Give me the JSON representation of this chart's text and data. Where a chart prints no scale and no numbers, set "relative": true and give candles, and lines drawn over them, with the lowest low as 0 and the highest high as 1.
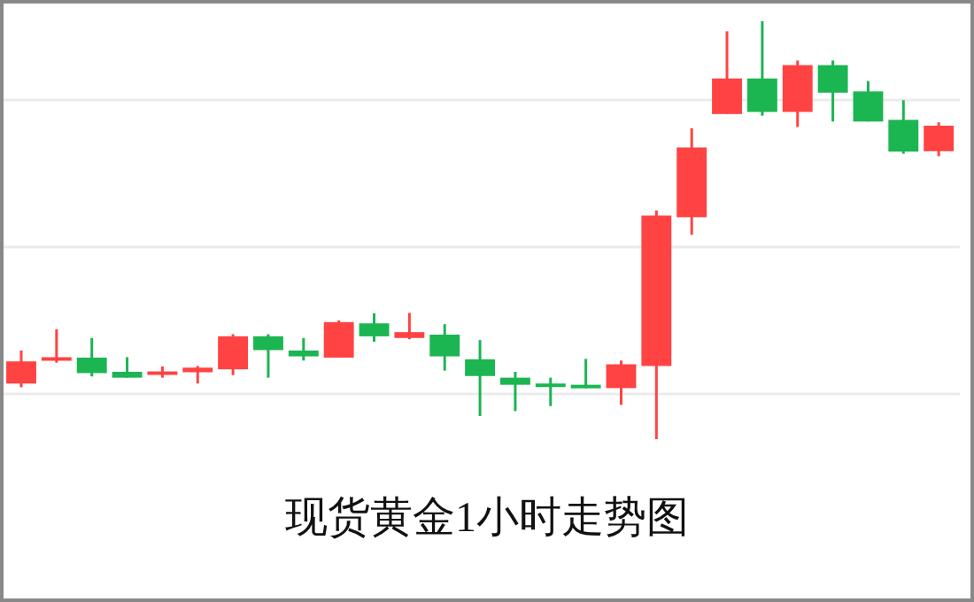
{
  "chart_data": {
    "type": "candlestick",
    "title": "现货黄金1小时走势图",
    "relative": true,
    "grid": "y",
    "categories": [
      null,
      null,
      null,
      null,
      null,
      null,
      null,
      null,
      null,
      null,
      null,
      null,
      null,
      null,
      null,
      null,
      null,
      null,
      null,
      null,
      null,
      null,
      null,
      null,
      null,
      null,
      null
    ],
    "ohlc": [
      [
        0.133,
        0.212,
        0.124,
        0.186
      ],
      [
        0.188,
        0.263,
        0.183,
        0.196
      ],
      [
        0.195,
        0.242,
        0.15,
        0.158
      ],
      [
        0.161,
        0.196,
        0.147,
        0.147
      ],
      [
        0.154,
        0.174,
        0.147,
        0.162
      ],
      [
        0.16,
        0.175,
        0.133,
        0.171
      ],
      [
        0.167,
        0.251,
        0.153,
        0.246
      ],
      [
        0.246,
        0.251,
        0.147,
        0.213
      ],
      [
        0.212,
        0.242,
        0.188,
        0.198
      ],
      [
        0.195,
        0.284,
        0.195,
        0.28
      ],
      [
        0.277,
        0.301,
        0.233,
        0.246
      ],
      [
        0.242,
        0.302,
        0.239,
        0.256
      ],
      [
        0.25,
        0.275,
        0.164,
        0.198
      ],
      [
        0.191,
        0.237,
        0.055,
        0.151
      ],
      [
        0.147,
        0.161,
        0.067,
        0.13
      ],
      [
        0.133,
        0.147,
        0.079,
        0.126
      ],
      [
        0.13,
        0.192,
        0.122,
        0.122
      ],
      [
        0.122,
        0.188,
        0.082,
        0.179
      ],
      [
        0.175,
        0.547,
        0.0,
        0.535
      ],
      [
        0.531,
        0.744,
        0.489,
        0.698
      ],
      [
        0.778,
        0.976,
        0.778,
        0.863
      ],
      [
        0.863,
        1.0,
        0.774,
        0.783
      ],
      [
        0.783,
        0.906,
        0.747,
        0.895
      ],
      [
        0.895,
        0.906,
        0.76,
        0.829
      ],
      [
        0.832,
        0.857,
        0.76,
        0.76
      ],
      [
        0.764,
        0.811,
        0.683,
        0.688
      ],
      [
        0.689,
        0.758,
        0.677,
        0.75
      ]
    ],
    "colors": [
      "#ff4343",
      "#ff4343",
      "#1bb552",
      "#1bb552",
      "#ff4343",
      "#ff4343",
      "#ff4343",
      "#1bb552",
      "#1bb552",
      "#ff4343",
      "#1bb552",
      "#ff4343",
      "#1bb552",
      "#1bb552",
      "#1bb552",
      "#1bb552",
      "#1bb552",
      "#ff4343",
      "#ff4343",
      "#ff4343",
      "#ff4343",
      "#1bb552",
      "#ff4343",
      "#1bb552",
      "#1bb552",
      "#1bb552",
      "#ff4343"
    ]
  }
}
